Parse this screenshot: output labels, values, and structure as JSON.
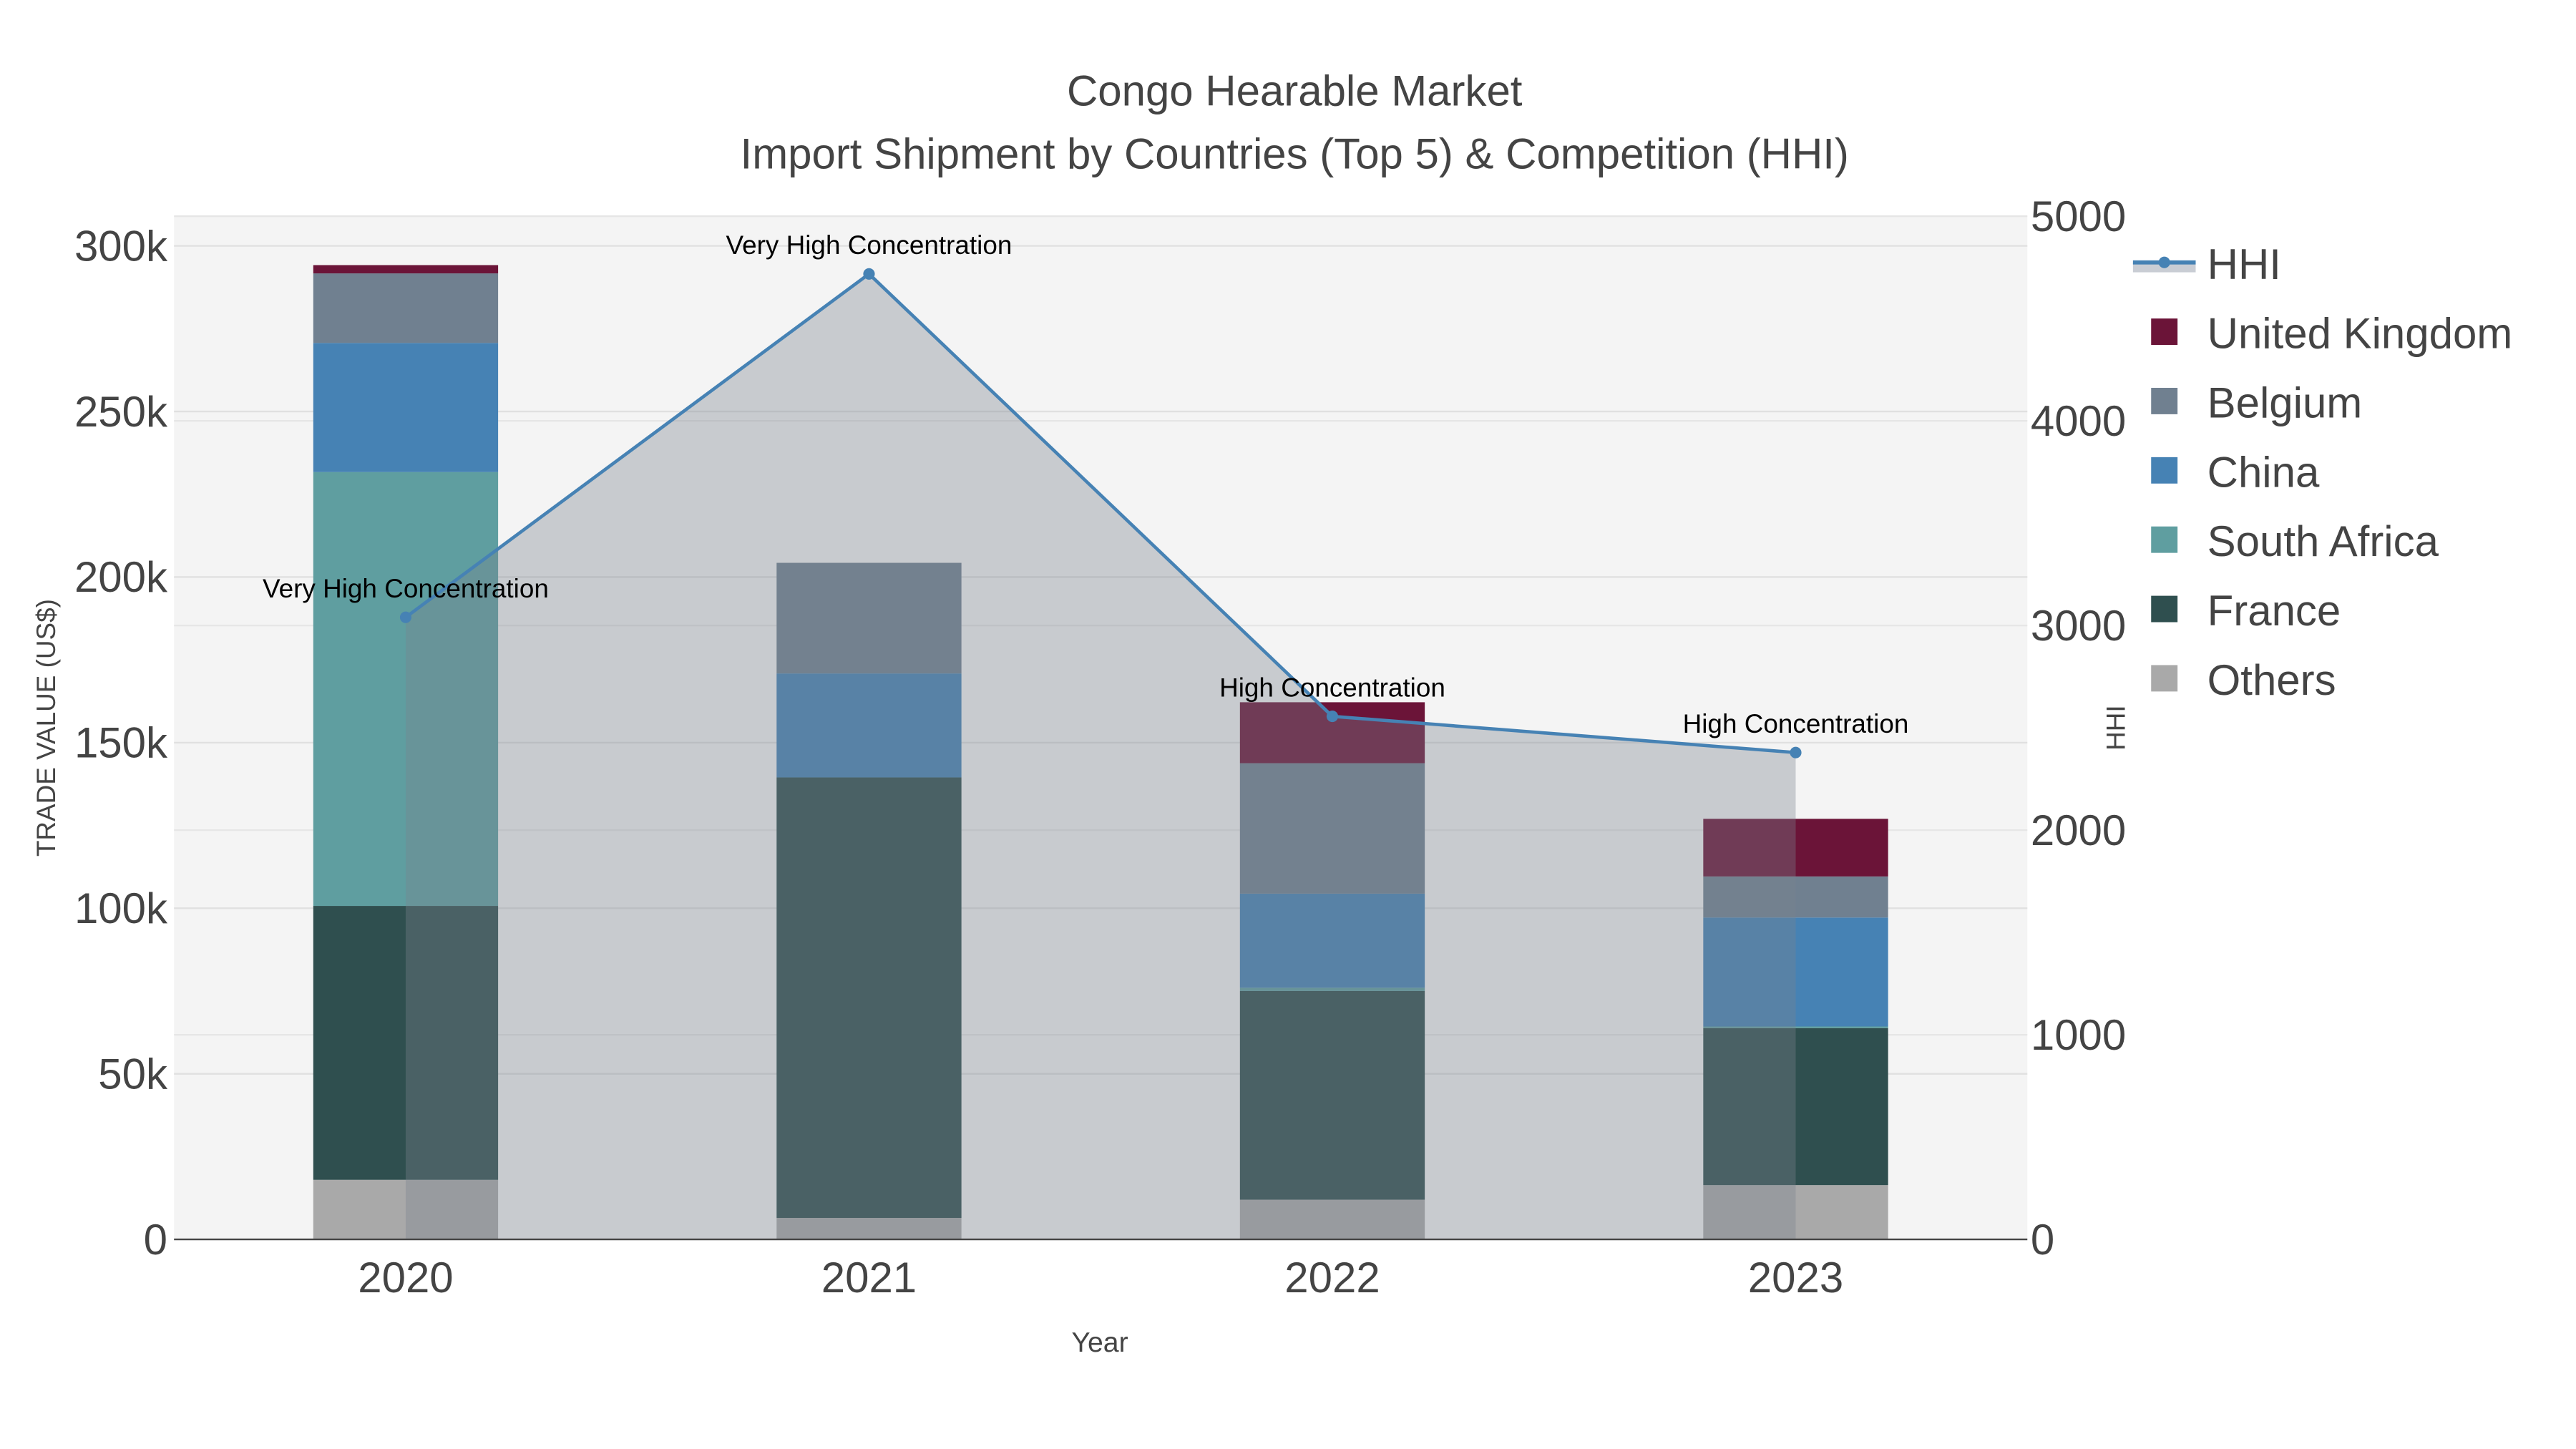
{
  "chart_data": {
    "type": "bar",
    "title": "Congo Hearable Market",
    "subtitle": "Import Shipment by Countries (Top 5) & Competition (HHI)",
    "xlabel": "Year",
    "ylabel": "TRADE VALUE (US$)",
    "y2label": "HHI",
    "categories": [
      "2020",
      "2021",
      "2022",
      "2023"
    ],
    "ylim": [
      0,
      310000
    ],
    "y2lim": [
      0,
      5000
    ],
    "yticks": [
      {
        "v": 0,
        "label": "0"
      },
      {
        "v": 50000,
        "label": "50k"
      },
      {
        "v": 100000,
        "label": "100k"
      },
      {
        "v": 150000,
        "label": "150k"
      },
      {
        "v": 200000,
        "label": "200k"
      },
      {
        "v": 250000,
        "label": "250k"
      },
      {
        "v": 300000,
        "label": "300k"
      }
    ],
    "y2ticks": [
      {
        "v": 0,
        "label": "0"
      },
      {
        "v": 1000,
        "label": "1000"
      },
      {
        "v": 2000,
        "label": "2000"
      },
      {
        "v": 3000,
        "label": "3000"
      },
      {
        "v": 4000,
        "label": "4000"
      },
      {
        "v": 5000,
        "label": "5000"
      }
    ],
    "series": [
      {
        "name": "Others",
        "color": "#a9a9a9",
        "values": [
          18000,
          6500,
          12000,
          16400
        ]
      },
      {
        "name": "France",
        "color": "#2f4f4f",
        "values": [
          82700,
          133000,
          63000,
          47400
        ]
      },
      {
        "name": "South Africa",
        "color": "#5f9ea0",
        "values": [
          131000,
          0,
          1000,
          500
        ]
      },
      {
        "name": "China",
        "color": "#4682b4",
        "values": [
          39000,
          31400,
          28400,
          32900
        ]
      },
      {
        "name": "Belgium",
        "color": "#708090",
        "values": [
          21000,
          33400,
          39400,
          12400
        ]
      },
      {
        "name": "United Kingdom",
        "color": "#6b1438",
        "values": [
          2500,
          0,
          18400,
          17400
        ]
      }
    ],
    "hhi": {
      "name": "HHI",
      "color": "#4682b4",
      "values": [
        3040,
        4718,
        2556,
        2379
      ],
      "annotations": [
        "Very High Concentration",
        "Very High Concentration",
        "High Concentration",
        "High Concentration"
      ]
    },
    "legend_order": [
      "HHI",
      "United Kingdom",
      "Belgium",
      "China",
      "South Africa",
      "France",
      "Others"
    ],
    "legend_placement": "right",
    "grid": true
  }
}
